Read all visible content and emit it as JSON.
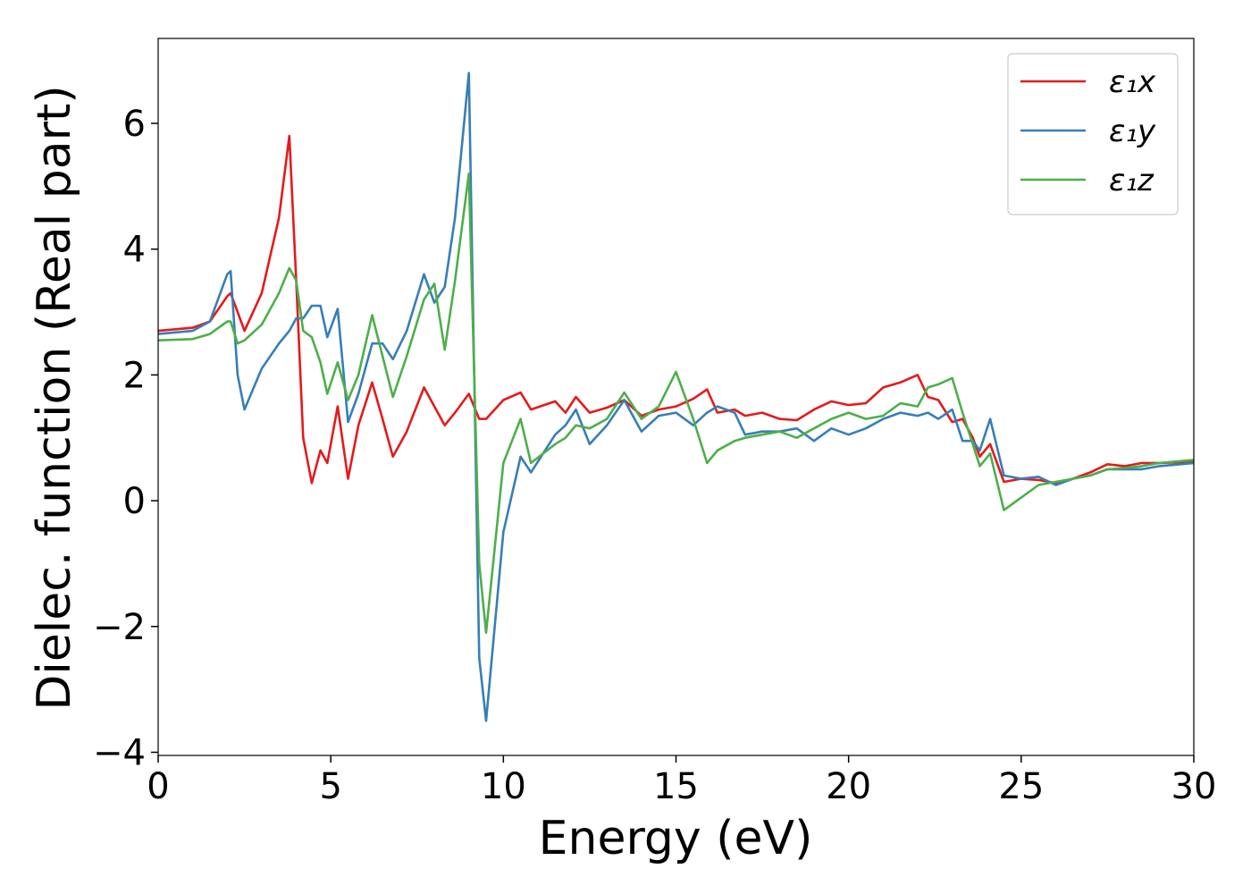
{
  "chart_data": {
    "type": "line",
    "x_label": "Energy (eV)",
    "y_label": "Dielec. function (Real part)",
    "x": [
      0,
      1,
      1.5,
      2,
      2.1,
      2.3,
      2.5,
      3,
      3.5,
      3.8,
      4,
      4.2,
      4.45,
      4.7,
      4.9,
      5.2,
      5.5,
      5.8,
      6.2,
      6.5,
      6.8,
      7.2,
      7.7,
      8,
      8.3,
      8.6,
      9,
      9.3,
      9.5,
      10,
      10.5,
      10.8,
      11.5,
      11.8,
      12.1,
      12.5,
      13,
      13.5,
      14,
      14.5,
      15,
      15.5,
      15.9,
      16.2,
      16.7,
      17,
      17.5,
      18,
      18.5,
      19,
      19.5,
      20,
      20.5,
      21,
      21.5,
      22,
      22.3,
      22.6,
      23,
      23.3,
      23.6,
      23.8,
      24.1,
      24.5,
      25,
      25.5,
      26,
      26.5,
      27,
      27.5,
      28,
      28.5,
      29,
      30
    ],
    "series": [
      {
        "name": "ε₁x",
        "color": "#e41a1c",
        "values": [
          2.7,
          2.75,
          2.85,
          3.25,
          3.3,
          3.0,
          2.7,
          3.3,
          4.5,
          5.8,
          3.5,
          1.0,
          0.28,
          0.8,
          0.6,
          1.5,
          0.35,
          1.2,
          1.88,
          1.3,
          0.7,
          1.1,
          1.8,
          1.5,
          1.2,
          1.4,
          1.7,
          1.3,
          1.3,
          1.6,
          1.72,
          1.45,
          1.58,
          1.4,
          1.65,
          1.4,
          1.48,
          1.6,
          1.35,
          1.45,
          1.5,
          1.62,
          1.77,
          1.4,
          1.45,
          1.35,
          1.4,
          1.3,
          1.28,
          1.45,
          1.58,
          1.52,
          1.55,
          1.8,
          1.88,
          2.0,
          1.65,
          1.6,
          1.25,
          1.3,
          1.0,
          0.7,
          0.9,
          0.3,
          0.35,
          0.33,
          0.28,
          0.35,
          0.45,
          0.58,
          0.55,
          0.6,
          0.6,
          0.62
        ]
      },
      {
        "name": "ε₁y",
        "color": "#377eb8",
        "values": [
          2.65,
          2.7,
          2.85,
          3.6,
          3.65,
          2.0,
          1.45,
          2.1,
          2.5,
          2.7,
          2.9,
          2.9,
          3.1,
          3.1,
          2.6,
          3.05,
          1.25,
          1.7,
          2.5,
          2.5,
          2.25,
          2.7,
          3.6,
          3.15,
          3.4,
          4.5,
          6.8,
          -2.5,
          -3.5,
          -0.5,
          0.7,
          0.45,
          1.05,
          1.2,
          1.45,
          0.9,
          1.2,
          1.6,
          1.1,
          1.35,
          1.4,
          1.2,
          1.4,
          1.5,
          1.4,
          1.05,
          1.1,
          1.1,
          1.15,
          0.95,
          1.15,
          1.05,
          1.15,
          1.3,
          1.4,
          1.35,
          1.4,
          1.3,
          1.45,
          0.95,
          0.95,
          0.8,
          1.3,
          0.4,
          0.35,
          0.38,
          0.25,
          0.35,
          0.4,
          0.5,
          0.5,
          0.5,
          0.55,
          0.6
        ]
      },
      {
        "name": "ε₁z",
        "color": "#4daf4a",
        "values": [
          2.55,
          2.57,
          2.65,
          2.85,
          2.85,
          2.5,
          2.55,
          2.8,
          3.3,
          3.7,
          3.5,
          2.7,
          2.6,
          2.2,
          1.7,
          2.2,
          1.6,
          2.0,
          2.95,
          2.3,
          1.65,
          2.3,
          3.2,
          3.45,
          2.4,
          3.5,
          5.2,
          -1.0,
          -2.1,
          0.6,
          1.3,
          0.6,
          0.9,
          1.0,
          1.2,
          1.15,
          1.3,
          1.72,
          1.3,
          1.5,
          2.05,
          1.3,
          0.6,
          0.8,
          0.95,
          1.0,
          1.05,
          1.1,
          1.0,
          1.15,
          1.3,
          1.4,
          1.3,
          1.35,
          1.55,
          1.5,
          1.8,
          1.85,
          1.95,
          1.4,
          0.9,
          0.55,
          0.75,
          -0.15,
          0.05,
          0.25,
          0.3,
          0.35,
          0.4,
          0.5,
          0.52,
          0.55,
          0.6,
          0.65
        ]
      }
    ],
    "xlim": [
      0,
      30
    ],
    "ylim": [
      -4.05,
      7.35
    ],
    "xticks": [
      0,
      5,
      10,
      15,
      20,
      25,
      30
    ],
    "yticks": [
      {
        "value": -4,
        "label": "−4"
      },
      {
        "value": -2,
        "label": "−2"
      },
      0,
      2,
      4,
      6
    ],
    "legend": "upper right",
    "grid": false
  }
}
